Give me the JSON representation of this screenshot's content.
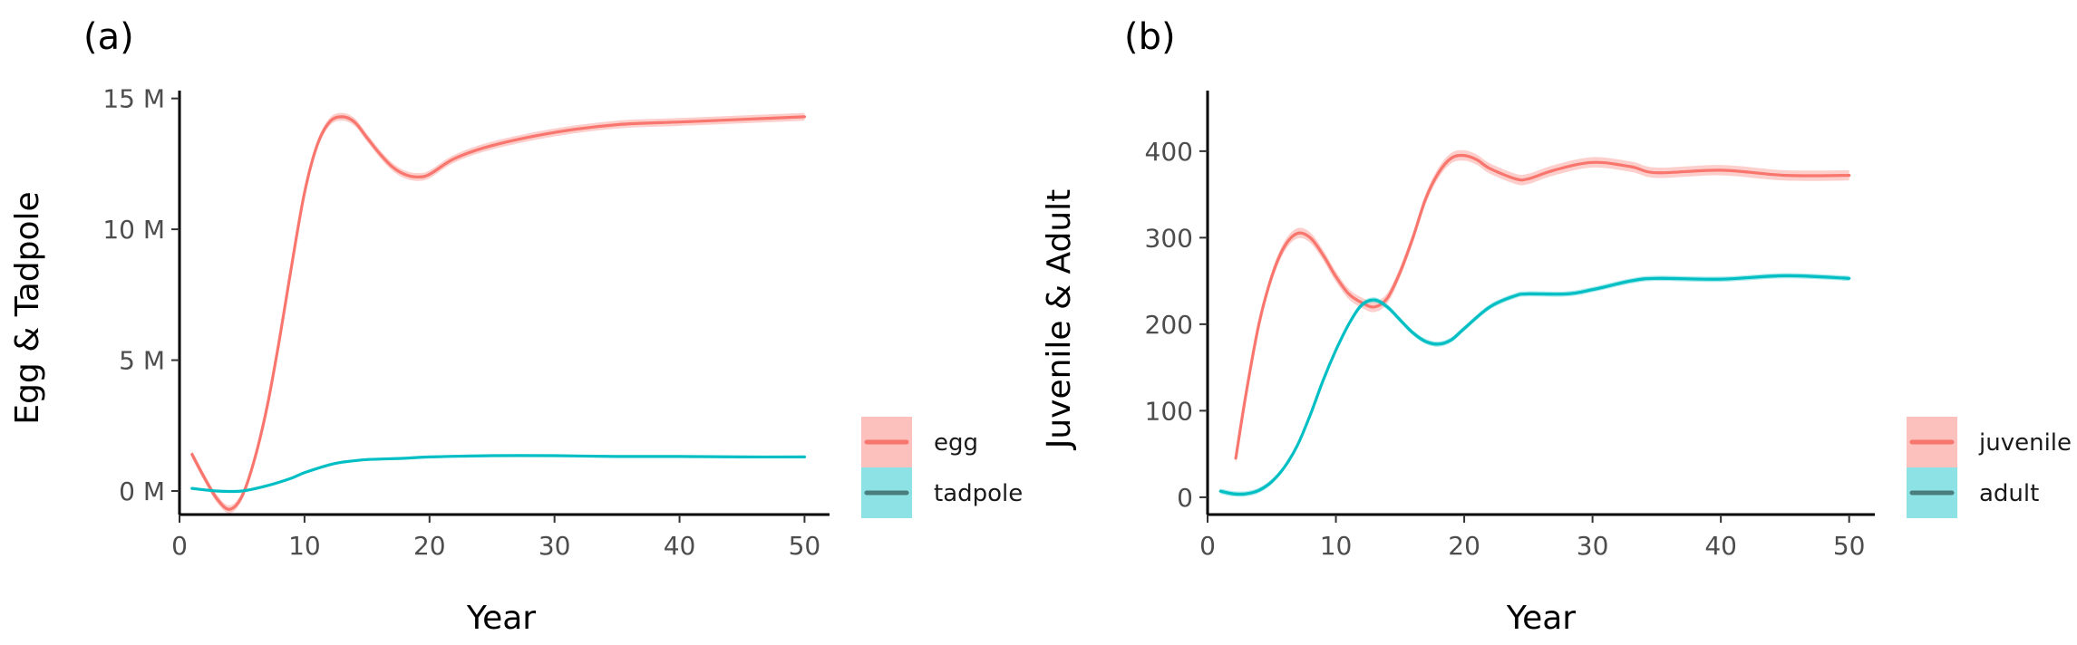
{
  "chart_data": [
    {
      "panel_label": "(a)",
      "type": "line",
      "xlabel": "Year",
      "ylabel": "Egg & Tadpole",
      "xlim": [
        0,
        52
      ],
      "ylim": [
        -900000,
        15300000
      ],
      "x_ticks": [
        0,
        10,
        20,
        30,
        40,
        50
      ],
      "x_tick_labels": [
        "0",
        "10",
        "20",
        "30",
        "40",
        "50"
      ],
      "y_ticks": [
        0,
        5000000,
        10000000,
        15000000
      ],
      "y_tick_labels": [
        "0 M",
        "5 M",
        "10 M",
        "15 M"
      ],
      "grid": false,
      "legend_position": "right",
      "series": [
        {
          "name": "egg",
          "color": "#F8766D",
          "band_color": "#F8766D",
          "x": [
            1,
            2,
            3,
            4,
            5,
            6,
            7,
            8,
            9,
            10,
            11,
            12,
            13,
            14,
            15,
            16,
            17,
            18,
            19,
            20,
            22,
            25,
            30,
            35,
            40,
            45,
            50
          ],
          "y": [
            1400000,
            500000,
            -300000,
            -700000,
            -200000,
            1200000,
            3200000,
            5800000,
            8700000,
            11400000,
            13200000,
            14100000,
            14300000,
            14100000,
            13500000,
            12900000,
            12400000,
            12100000,
            12000000,
            12100000,
            12700000,
            13200000,
            13700000,
            14000000,
            14100000,
            14200000,
            14300000
          ],
          "band": 150000
        },
        {
          "name": "tadpole",
          "color": "#00BFC4",
          "band_color": "#00BFC4",
          "x": [
            1,
            3,
            5,
            7,
            9,
            10,
            12,
            13,
            15,
            18,
            20,
            25,
            30,
            35,
            40,
            45,
            50
          ],
          "y": [
            100000,
            0,
            0,
            200000,
            500000,
            700000,
            1000000,
            1100000,
            1200000,
            1250000,
            1300000,
            1350000,
            1350000,
            1320000,
            1320000,
            1300000,
            1300000
          ],
          "band": 30000
        }
      ]
    },
    {
      "panel_label": "(b)",
      "type": "line",
      "xlabel": "Year",
      "ylabel": "Juvenile & Adult",
      "xlim": [
        0,
        52
      ],
      "ylim": [
        -20,
        470
      ],
      "x_ticks": [
        0,
        10,
        20,
        30,
        40,
        50
      ],
      "x_tick_labels": [
        "0",
        "10",
        "20",
        "30",
        "40",
        "50"
      ],
      "y_ticks": [
        0,
        100,
        200,
        300,
        400
      ],
      "y_tick_labels": [
        "0",
        "100",
        "200",
        "300",
        "400"
      ],
      "grid": false,
      "legend_position": "right",
      "series": [
        {
          "name": "juvenile",
          "color": "#F8766D",
          "band_color": "#F8766D",
          "x": [
            2.2,
            3,
            4,
            5,
            6,
            7,
            8,
            9,
            10,
            11,
            12,
            13,
            14,
            15,
            16,
            17,
            18,
            19,
            20,
            21,
            22,
            24,
            25,
            27,
            30,
            33,
            35,
            40,
            45,
            50
          ],
          "y": [
            45,
            120,
            200,
            255,
            290,
            305,
            300,
            280,
            255,
            235,
            225,
            220,
            230,
            260,
            300,
            345,
            375,
            392,
            395,
            390,
            380,
            368,
            368,
            378,
            387,
            382,
            375,
            378,
            372,
            372
          ],
          "band": 6
        },
        {
          "name": "adult",
          "color": "#00BFC4",
          "band_color": "#00BFC4",
          "x": [
            1,
            2,
            3,
            4,
            5,
            6,
            7,
            8,
            9,
            10,
            11,
            12,
            13,
            14,
            15,
            16,
            17,
            18,
            19,
            20,
            22,
            24,
            25,
            28,
            30,
            33,
            35,
            40,
            45,
            50
          ],
          "y": [
            7,
            4,
            4,
            8,
            18,
            35,
            60,
            95,
            135,
            170,
            200,
            222,
            228,
            220,
            205,
            190,
            180,
            177,
            182,
            195,
            220,
            233,
            235,
            235,
            240,
            250,
            253,
            252,
            256,
            253
          ],
          "band": 3
        }
      ]
    }
  ]
}
